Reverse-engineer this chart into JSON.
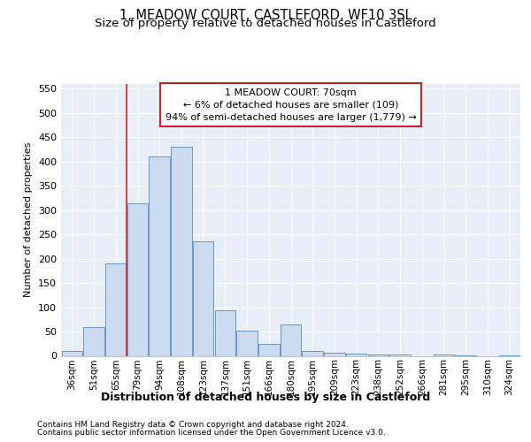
{
  "title": "1, MEADOW COURT, CASTLEFORD, WF10 3SL",
  "subtitle": "Size of property relative to detached houses in Castleford",
  "xlabel": "Distribution of detached houses by size in Castleford",
  "ylabel": "Number of detached properties",
  "categories": [
    "36sqm",
    "51sqm",
    "65sqm",
    "79sqm",
    "94sqm",
    "108sqm",
    "123sqm",
    "137sqm",
    "151sqm",
    "166sqm",
    "180sqm",
    "195sqm",
    "209sqm",
    "223sqm",
    "238sqm",
    "252sqm",
    "266sqm",
    "281sqm",
    "295sqm",
    "310sqm",
    "324sqm"
  ],
  "values": [
    10,
    60,
    190,
    315,
    410,
    430,
    235,
    93,
    52,
    25,
    65,
    10,
    7,
    4,
    3,
    2,
    0,
    2,
    1,
    0,
    1
  ],
  "bar_color": "#ccdaf0",
  "bar_edge_color": "#6699cc",
  "vline_color": "#cc2222",
  "vline_position": 2.5,
  "annotation_line1": "1 MEADOW COURT: 70sqm",
  "annotation_line2": "← 6% of detached houses are smaller (109)",
  "annotation_line3": "94% of semi-detached houses are larger (1,779) →",
  "annotation_box_edgecolor": "#cc2222",
  "ylim": [
    0,
    560
  ],
  "yticks": [
    0,
    50,
    100,
    150,
    200,
    250,
    300,
    350,
    400,
    450,
    500,
    550
  ],
  "plot_bg_color": "#e8eef8",
  "grid_color": "#ffffff",
  "footer_line1": "Contains HM Land Registry data © Crown copyright and database right 2024.",
  "footer_line2": "Contains public sector information licensed under the Open Government Licence v3.0.",
  "title_fontsize": 10.5,
  "subtitle_fontsize": 9.5,
  "xlabel_fontsize": 9,
  "ylabel_fontsize": 8,
  "tick_fontsize": 8,
  "xtick_fontsize": 7.5,
  "annotation_fontsize": 8,
  "footer_fontsize": 6.5
}
